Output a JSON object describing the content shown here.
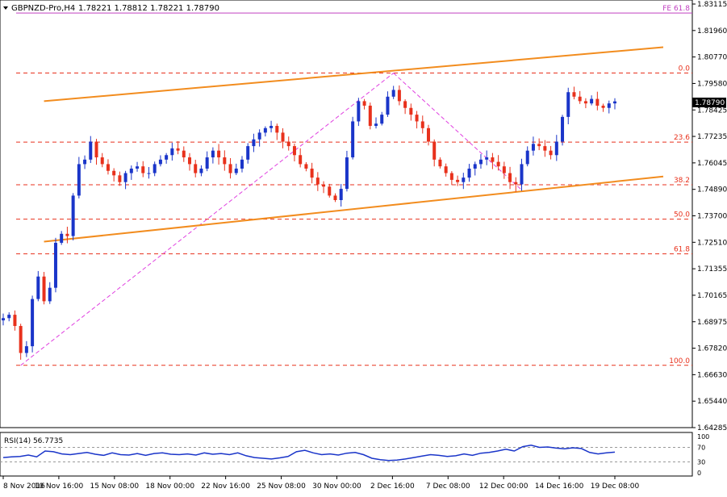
{
  "header": {
    "symbol_label": "GBPNZD-Pro,H4",
    "ohlc_label": "1.78221 1.78812 1.78221 1.78790"
  },
  "price_axis": {
    "labels": [
      "1.83115",
      "1.81960",
      "1.80770",
      "1.79580",
      "1.78425",
      "1.77235",
      "1.76045",
      "1.74890",
      "1.73700",
      "1.72510",
      "1.71355",
      "1.70165",
      "1.68975",
      "1.67820",
      "1.66630",
      "1.65440",
      "1.64285"
    ],
    "current_price_label": "1.78790"
  },
  "fibonacci": {
    "fe_label": "FE 61.8",
    "levels": [
      {
        "label": "0.0",
        "price": 1.8005
      },
      {
        "label": "23.6",
        "price": 1.7698
      },
      {
        "label": "38.2",
        "price": 1.7508
      },
      {
        "label": "50.0",
        "price": 1.7355
      },
      {
        "label": "61.8",
        "price": 1.7201
      },
      {
        "label": "100.0",
        "price": 1.6705
      }
    ],
    "fe_price": 1.8272
  },
  "indicator": {
    "label": "RSI(14) 56.7735",
    "levels": [
      "100",
      "70",
      "30",
      "0"
    ],
    "values": [
      42,
      44,
      45,
      49,
      44,
      60,
      58,
      52,
      50,
      53,
      56,
      51,
      48,
      55,
      50,
      49,
      53,
      48,
      53,
      55,
      51,
      50,
      52,
      49,
      55,
      51,
      53,
      50,
      55,
      47,
      42,
      40,
      38,
      41,
      45,
      58,
      62,
      55,
      50,
      52,
      49,
      54,
      56,
      50,
      40,
      36,
      34,
      35,
      38,
      42,
      46,
      50,
      48,
      45,
      47,
      52,
      48,
      54,
      56,
      60,
      65,
      60,
      72,
      76,
      70,
      71,
      68,
      66,
      69,
      67,
      56,
      52,
      55,
      57
    ]
  },
  "time_axis": {
    "labels": [
      "8 Nov 2016",
      "10 Nov 16:00",
      "15 Nov 08:00",
      "18 Nov 00:00",
      "22 Nov 16:00",
      "25 Nov 08:00",
      "30 Nov 00:00",
      "2 Dec 16:00",
      "7 Dec 08:00",
      "12 Dec 00:00",
      "14 Dec 16:00",
      "19 Dec 08:00"
    ]
  },
  "chart_data": {
    "type": "candlestick",
    "symbol": "GBPNZD-Pro",
    "timeframe": "H4",
    "ylim": [
      1.6428,
      1.8312
    ],
    "colors": {
      "up": "#1a35c9",
      "down": "#e8311c",
      "trendline": "#f28c1e",
      "fib": "#e8311c",
      "zigzag": "#e040e0",
      "rsi": "#1a35c9"
    },
    "closes": [
      1.6915,
      1.693,
      1.688,
      1.676,
      1.679,
      1.7,
      1.71,
      1.699,
      1.705,
      1.725,
      1.729,
      1.728,
      1.746,
      1.76,
      1.762,
      1.77,
      1.763,
      1.76,
      1.757,
      1.755,
      1.752,
      1.756,
      1.758,
      1.759,
      1.756,
      1.756,
      1.76,
      1.762,
      1.764,
      1.767,
      1.766,
      1.763,
      1.76,
      1.756,
      1.758,
      1.763,
      1.766,
      1.763,
      1.76,
      1.756,
      1.758,
      1.762,
      1.768,
      1.771,
      1.774,
      1.776,
      1.777,
      1.774,
      1.77,
      1.768,
      1.764,
      1.76,
      1.758,
      1.754,
      1.751,
      1.75,
      1.746,
      1.744,
      1.749,
      1.763,
      1.779,
      1.788,
      1.786,
      1.777,
      1.778,
      1.782,
      1.79,
      1.793,
      1.788,
      1.785,
      1.782,
      1.779,
      1.776,
      1.77,
      1.762,
      1.759,
      1.756,
      1.753,
      1.752,
      1.754,
      1.758,
      1.76,
      1.762,
      1.763,
      1.761,
      1.759,
      1.756,
      1.752,
      1.751,
      1.76,
      1.766,
      1.769,
      1.768,
      1.766,
      1.764,
      1.77,
      1.781,
      1.792,
      1.79,
      1.788,
      1.787,
      1.789,
      1.786,
      1.785,
      1.787,
      1.7879
    ],
    "reference_closes": {
      "swing_low": 1.6705,
      "swing_high": 1.8005,
      "retrace_low": 1.7485
    },
    "trendlines": [
      {
        "name": "upper",
        "points": [
          [
            "10 Nov",
            1.788
          ],
          [
            "22 Dec",
            1.812
          ]
        ]
      },
      {
        "name": "lower",
        "points": [
          [
            "10 Nov",
            1.7255
          ],
          [
            "22 Dec",
            1.7545
          ]
        ]
      }
    ]
  }
}
